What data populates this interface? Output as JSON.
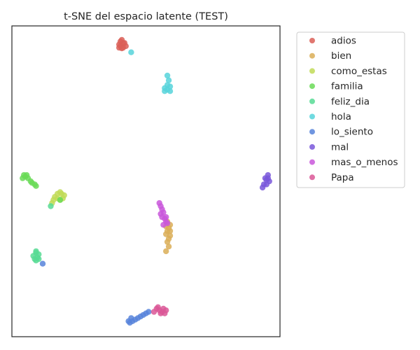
{
  "chart_data": {
    "type": "scatter",
    "title": "t-SNE del espacio latente (TEST)",
    "xlabel": "",
    "ylabel": "",
    "xlim": [
      0,
      100
    ],
    "ylim": [
      0,
      100
    ],
    "grid": false,
    "ticks": false,
    "legend_position": "outside-right",
    "series": [
      {
        "name": "adios",
        "color": "#db5f57",
        "points": [
          [
            40,
            94
          ],
          [
            40.5,
            95
          ],
          [
            41,
            95.5
          ],
          [
            41.5,
            94.5
          ],
          [
            40.5,
            93.5
          ],
          [
            41.5,
            93
          ],
          [
            42.5,
            93.5
          ],
          [
            42,
            94.5
          ],
          [
            41,
            92.8
          ],
          [
            40,
            93
          ]
        ]
      },
      {
        "name": "bien",
        "color": "#dbae57",
        "points": [
          [
            57.5,
            33
          ],
          [
            58,
            34
          ],
          [
            58.5,
            35
          ],
          [
            59,
            36
          ],
          [
            58,
            37
          ],
          [
            57.5,
            35.5
          ],
          [
            58.5,
            31.5
          ],
          [
            59,
            32.5
          ],
          [
            58,
            30.5
          ],
          [
            58.5,
            29
          ],
          [
            59,
            34
          ],
          [
            57.5,
            27.5
          ]
        ]
      },
      {
        "name": "como_estas",
        "color": "#c1db57",
        "points": [
          [
            16,
            45
          ],
          [
            17,
            46
          ],
          [
            18,
            46.5
          ],
          [
            18.5,
            46
          ],
          [
            19.5,
            45.5
          ],
          [
            19,
            44.5
          ],
          [
            18,
            44
          ],
          [
            17,
            44.5
          ],
          [
            15.5,
            44
          ],
          [
            15,
            43
          ]
        ]
      },
      {
        "name": "familia",
        "color": "#6adb57",
        "points": [
          [
            4.5,
            52
          ],
          [
            5,
            51.5
          ],
          [
            5.5,
            52
          ],
          [
            6,
            51
          ],
          [
            7,
            50
          ],
          [
            7.5,
            49.5
          ],
          [
            8.5,
            49
          ],
          [
            9,
            48.5
          ],
          [
            4,
            51
          ],
          [
            18,
            44
          ]
        ]
      },
      {
        "name": "feliz_dia",
        "color": "#57db94",
        "points": [
          [
            8,
            26
          ],
          [
            9,
            27
          ],
          [
            10,
            26.5
          ],
          [
            9.5,
            25.5
          ],
          [
            8.5,
            25
          ],
          [
            9,
            24.5
          ],
          [
            10,
            25
          ],
          [
            9,
            27.5
          ],
          [
            14.5,
            42
          ]
        ]
      },
      {
        "name": "hola",
        "color": "#57d3db",
        "points": [
          [
            57,
            80
          ],
          [
            58,
            81
          ],
          [
            59,
            80.5
          ],
          [
            58,
            79.5
          ],
          [
            57,
            79
          ],
          [
            59,
            79
          ],
          [
            58.5,
            82.5
          ],
          [
            58,
            84
          ],
          [
            44.5,
            91.5
          ]
        ]
      },
      {
        "name": "lo_siento",
        "color": "#5784db",
        "points": [
          [
            43.5,
            5
          ],
          [
            44,
            4.5
          ],
          [
            45,
            5
          ],
          [
            46,
            5.5
          ],
          [
            47,
            6
          ],
          [
            48,
            6.5
          ],
          [
            49,
            7
          ],
          [
            50,
            7.5
          ],
          [
            51,
            8
          ],
          [
            44.5,
            6
          ],
          [
            11.5,
            23.5
          ]
        ]
      },
      {
        "name": "mal",
        "color": "#7957db",
        "points": [
          [
            94.5,
            51
          ],
          [
            95,
            50.5
          ],
          [
            95.5,
            51
          ],
          [
            96,
            50
          ],
          [
            95,
            49
          ],
          [
            94,
            49
          ],
          [
            93.5,
            48
          ],
          [
            95.5,
            52
          ]
        ]
      },
      {
        "name": "mas_o_menos",
        "color": "#c957db",
        "points": [
          [
            55,
            43
          ],
          [
            55.5,
            42
          ],
          [
            56,
            41
          ],
          [
            56.5,
            40
          ],
          [
            55.5,
            39.5
          ],
          [
            56,
            38.5
          ],
          [
            57,
            38
          ],
          [
            57.5,
            37
          ],
          [
            58,
            36.5
          ],
          [
            57.5,
            38.5
          ],
          [
            56.5,
            36
          ]
        ]
      },
      {
        "name": "Papa",
        "color": "#db5797",
        "points": [
          [
            53,
            8
          ],
          [
            54,
            9
          ],
          [
            55,
            8.5
          ],
          [
            56,
            8
          ],
          [
            57,
            7.5
          ],
          [
            56.5,
            9
          ],
          [
            55.5,
            7.5
          ],
          [
            54.5,
            9.5
          ],
          [
            57.5,
            8.5
          ]
        ]
      }
    ]
  }
}
